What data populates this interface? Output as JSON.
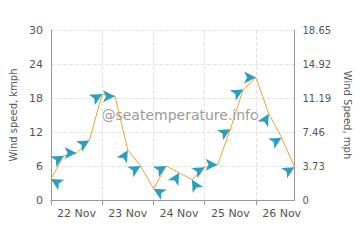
{
  "chart_data": {
    "type": "line",
    "categories": [
      null,
      null,
      "22 Nov",
      null,
      null,
      null,
      "23 Nov",
      null,
      null,
      null,
      "24 Nov",
      null,
      null,
      null,
      "25 Nov",
      null,
      null,
      null,
      "26 Nov",
      null
    ],
    "values": [
      3.7,
      7.8,
      8.3,
      10.5,
      18.7,
      18.3,
      8.8,
      6.0,
      2.0,
      6.0,
      4.8,
      3.6,
      5.8,
      6.2,
      12.5,
      19.5,
      21.6,
      15.2,
      11.0,
      5.8
    ],
    "directions": [
      60,
      300,
      270,
      300,
      300,
      270,
      330,
      300,
      60,
      300,
      330,
      30,
      300,
      270,
      300,
      300,
      270,
      330,
      300,
      300
    ],
    "color": "#f0a030",
    "marker": "arrow",
    "ylabel": "Wind speed, kmph",
    "y2label": "Wind Speed, mph",
    "ylim": [
      0,
      30
    ],
    "yticks": [
      0,
      6,
      12,
      18,
      24,
      30
    ],
    "y2lim": [
      0,
      18.65
    ],
    "y2ticks": [
      0,
      3.73,
      7.46,
      11.19,
      14.92,
      18.65
    ],
    "annotations": [
      "@seatemperature.info"
    ],
    "grid": true
  }
}
